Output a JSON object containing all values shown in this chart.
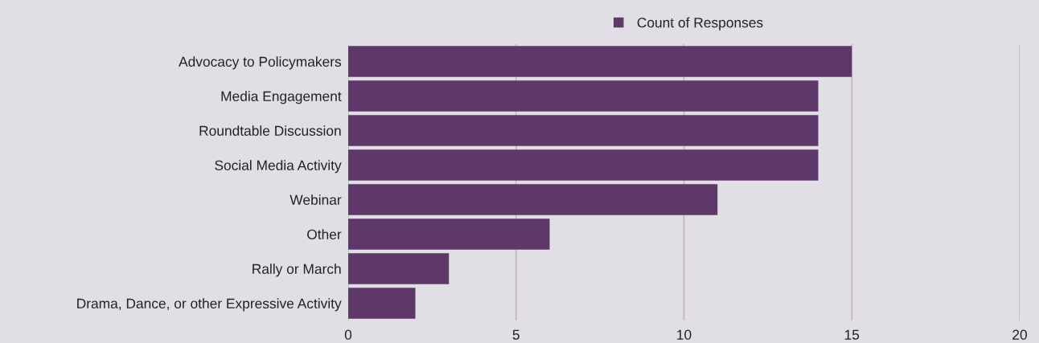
{
  "chart_data": {
    "type": "bar",
    "orientation": "horizontal",
    "categories": [
      "Advocacy to Policymakers",
      "Media Engagement",
      "Roundtable Discussion",
      "Social Media Activity",
      "Webinar",
      "Other",
      "Rally or March",
      "Drama, Dance, or other Expressive Activity"
    ],
    "series": [
      {
        "name": "Count of Responses",
        "color": "#5e3868",
        "values": [
          15,
          14,
          14,
          14,
          11,
          6,
          3,
          2
        ]
      }
    ],
    "xlim": [
      0,
      20
    ],
    "xticks": [
      0,
      5,
      10,
      15,
      20
    ],
    "grid": "x",
    "legend": "top"
  }
}
